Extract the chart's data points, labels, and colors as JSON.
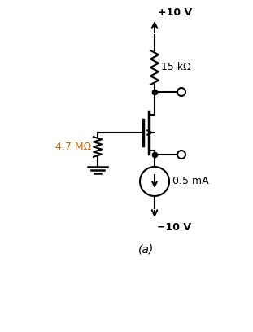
{
  "title": "(a)",
  "vdd_label": "+10 V",
  "vss_label": "−10 V",
  "rd_label": "15 kΩ",
  "rg_label": "4.7 MΩ",
  "i_label": "0.5 mA",
  "bg_color": "#ffffff",
  "line_color": "#000000",
  "label_color_orange": "#cc6600",
  "figsize": [
    3.11,
    4.08
  ],
  "dpi": 100
}
